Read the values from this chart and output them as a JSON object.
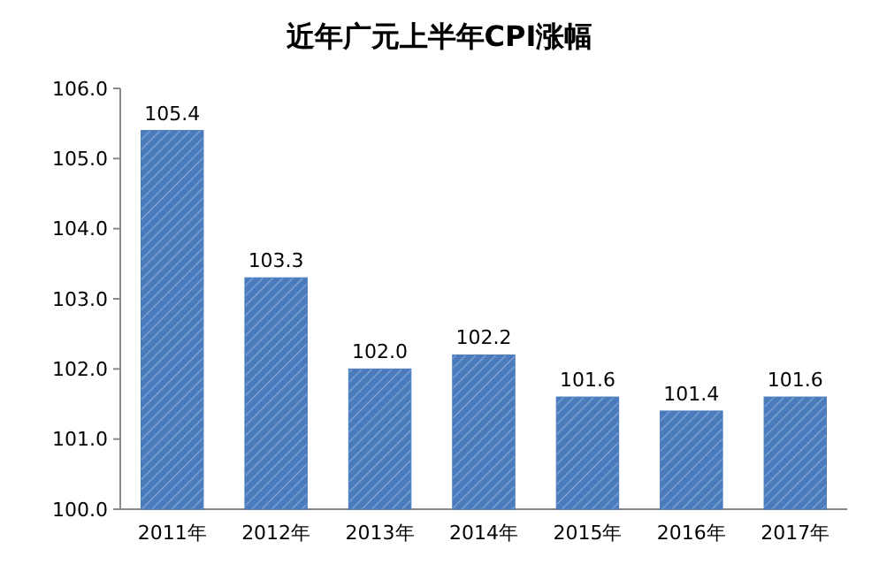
{
  "chart_data": {
    "type": "bar",
    "title": "近年广元上半年CPI涨幅",
    "categories": [
      "2011年",
      "2012年",
      "2013年",
      "2014年",
      "2015年",
      "2016年",
      "2017年"
    ],
    "values": [
      105.4,
      103.3,
      102.0,
      102.2,
      101.6,
      101.4,
      101.6
    ],
    "color": "#4a7bbd",
    "ylim": [
      100,
      106
    ],
    "yticks": [
      "100.0",
      "101.0",
      "102.0",
      "103.0",
      "104.0",
      "105.0",
      "106.0"
    ],
    "value_labels": [
      "105.4",
      "103.3",
      "102.0",
      "102.2",
      "101.6",
      "101.4",
      "101.6"
    ],
    "grid": false
  }
}
